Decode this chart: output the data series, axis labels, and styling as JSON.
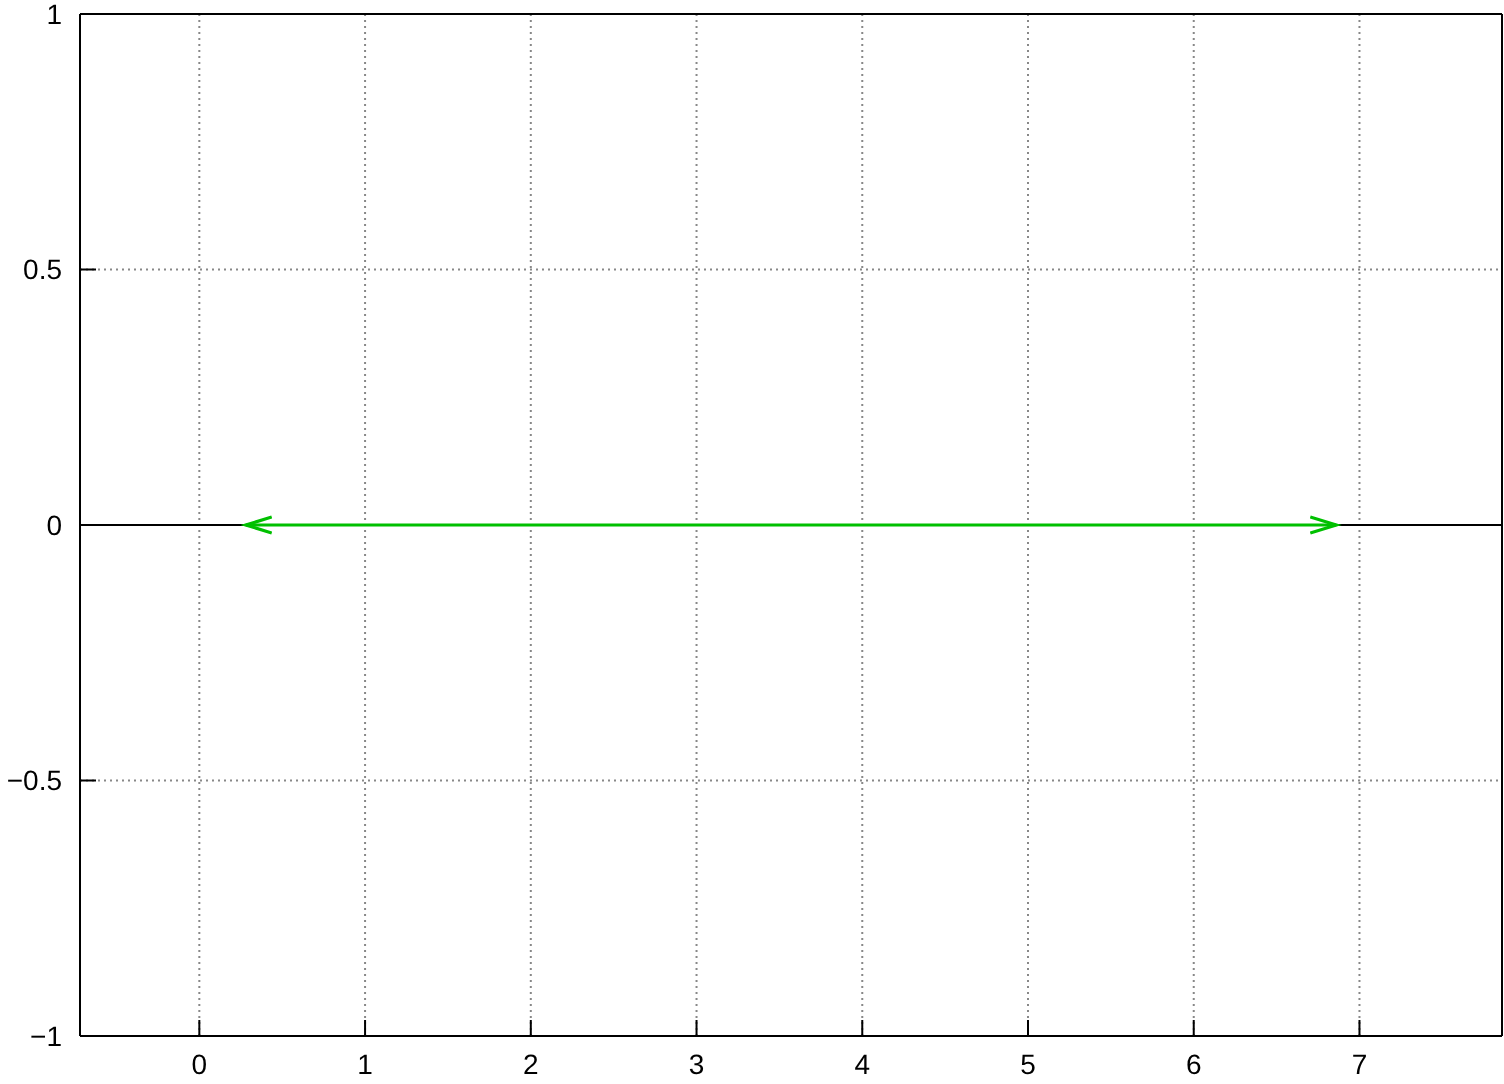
{
  "chart_data": {
    "type": "line",
    "x": [
      0.28,
      6.86
    ],
    "series": [
      {
        "color": "#00c000",
        "values": [
          0,
          0
        ]
      }
    ],
    "xlim": [
      -0.72,
      7.86
    ],
    "xticks": [
      0,
      1,
      2,
      3,
      4,
      5,
      6,
      7
    ],
    "ylim": [
      -1,
      1
    ],
    "yticks": [
      {
        "value": -1,
        "label": "−1"
      },
      {
        "value": -0.5,
        "label": "−0.5"
      },
      0,
      0.5,
      1
    ],
    "grid": true,
    "ref_lines": [
      {
        "axis": "y",
        "value": 0,
        "color": "#000000"
      }
    ]
  }
}
